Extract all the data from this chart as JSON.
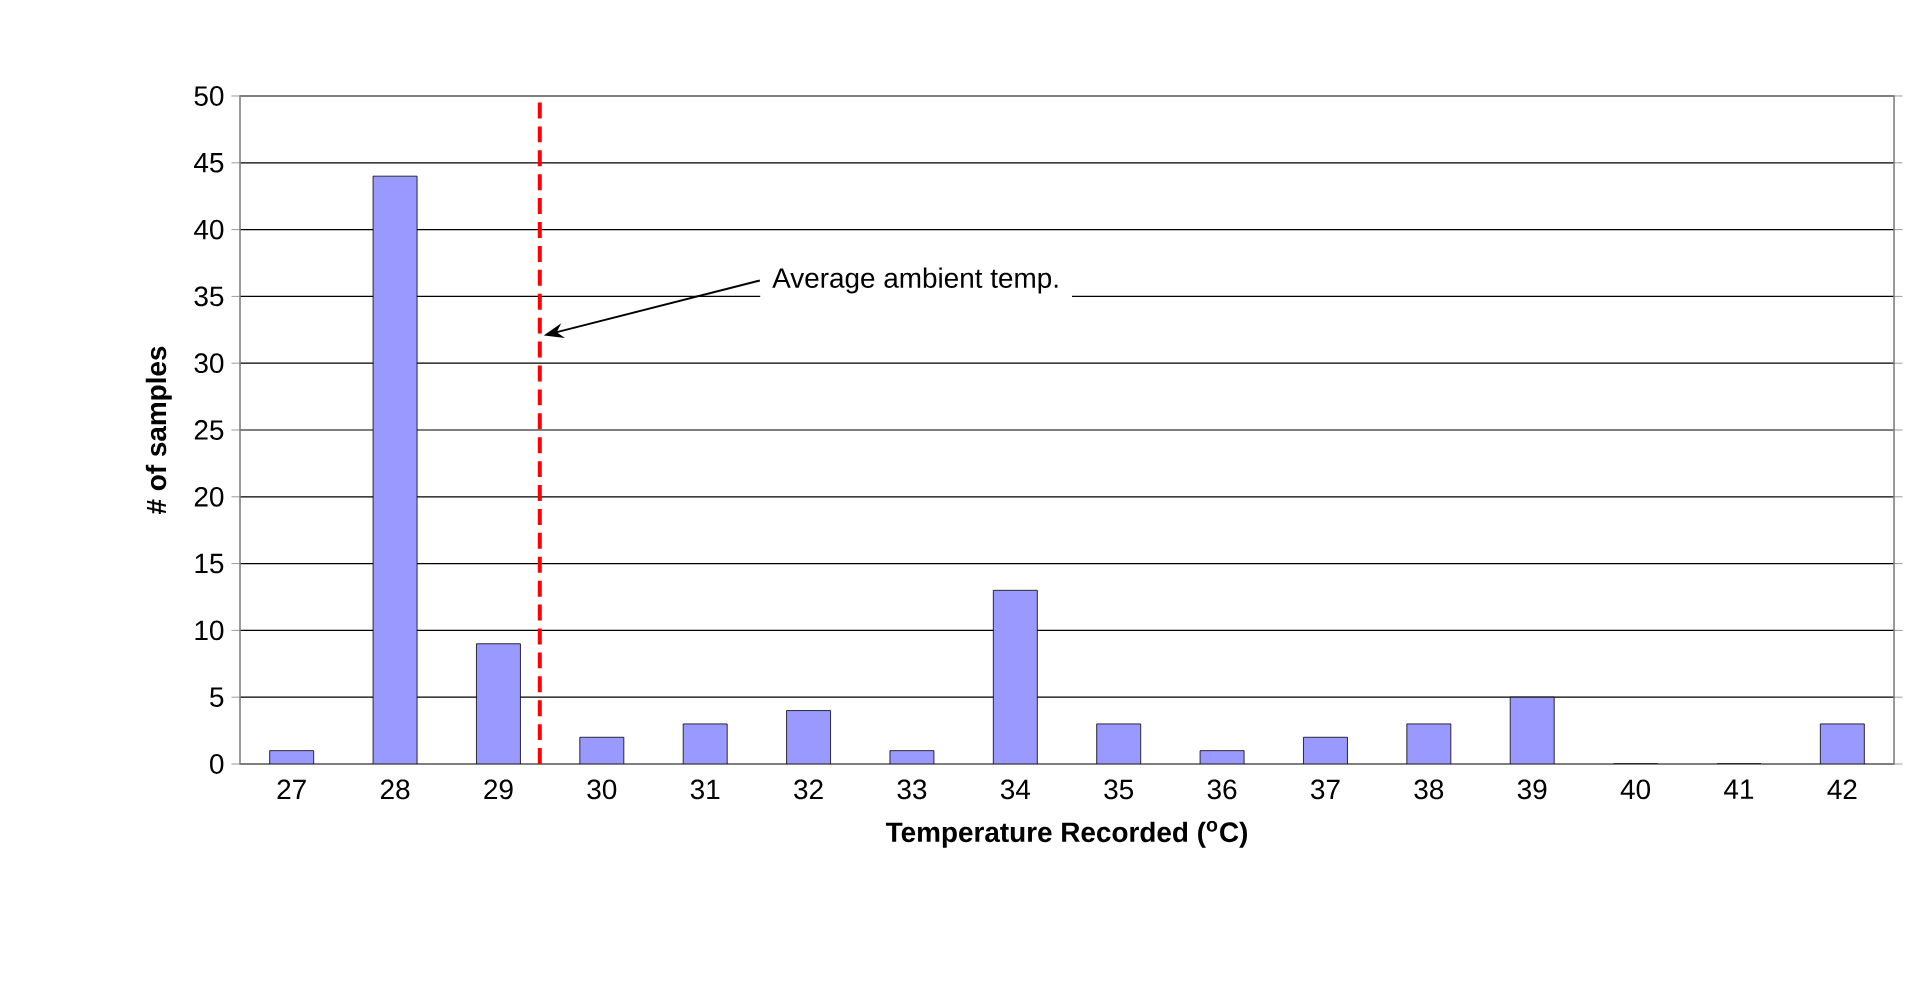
{
  "chart_data": {
    "type": "bar",
    "xlabel": "Temperature Recorded ($^{o}$C)",
    "ylabel": "# of samples",
    "x": [
      27,
      28,
      29,
      30,
      31,
      32,
      33,
      34,
      35,
      36,
      37,
      38,
      39,
      40,
      41,
      42
    ],
    "values": [
      1,
      44,
      9,
      2,
      3,
      4,
      1,
      13,
      3,
      1,
      2,
      3,
      5,
      0,
      0,
      3
    ],
    "color": "#9999ff",
    "xlim": [
      26.5,
      42.5
    ],
    "xticks": [
      27,
      28,
      29,
      30,
      31,
      32,
      33,
      34,
      35,
      36,
      37,
      38,
      39,
      40,
      41,
      42
    ],
    "ylim": [
      0,
      50
    ],
    "yticks": [
      0,
      5,
      10,
      15,
      20,
      25,
      30,
      35,
      40,
      45,
      50
    ],
    "grid": "y",
    "ref_lines": [
      {
        "axis": "x",
        "value": 29.4,
        "color": "#ff0000",
        "line_style": "dashed"
      }
    ],
    "annotations": [
      {
        "text": "Average ambient temp.",
        "x": 29.4,
        "y": 32
      }
    ]
  }
}
